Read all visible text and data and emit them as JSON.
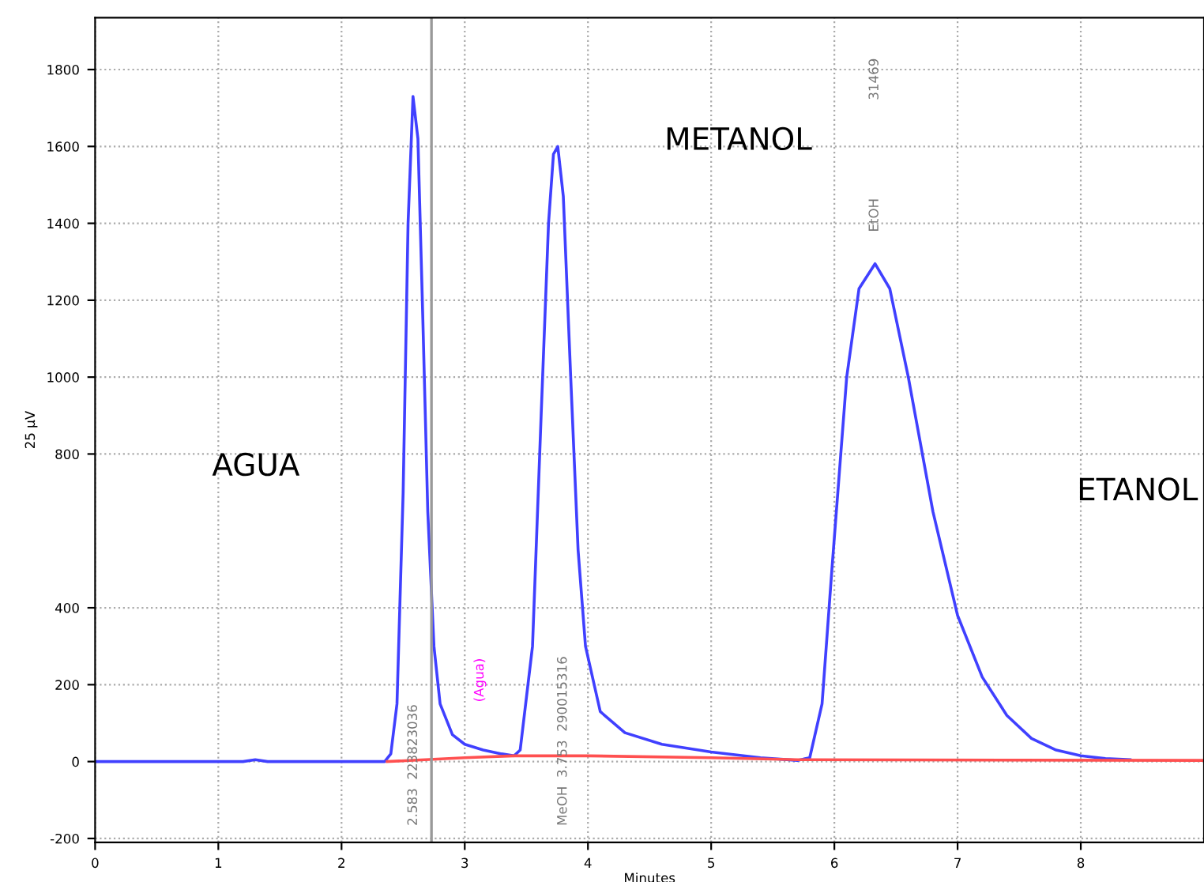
{
  "chart_data": {
    "type": "line",
    "xlabel": "Minutes",
    "ylabel": "25 µV",
    "xlim": [
      0,
      9
    ],
    "ylim": [
      -210,
      1935
    ],
    "xticks": [
      0,
      1,
      2,
      3,
      4,
      5,
      6,
      7,
      8
    ],
    "yticks": [
      -200,
      0,
      200,
      400,
      800,
      1000,
      1200,
      1400,
      1600,
      1800
    ],
    "grid": true,
    "marker": "none",
    "line_style": "solid",
    "series": [
      {
        "color": "#4040ff",
        "x": [
          0,
          1.2,
          1.3,
          1.4,
          2.35,
          2.4,
          2.45,
          2.5,
          2.54,
          2.58,
          2.62,
          2.66,
          2.7,
          2.75,
          2.8,
          2.9,
          3.0,
          3.15,
          3.3,
          3.4,
          3.45,
          3.55,
          3.62,
          3.68,
          3.72,
          3.755,
          3.8,
          3.86,
          3.92,
          3.98,
          4.1,
          4.3,
          4.6,
          5.0,
          5.4,
          5.7,
          5.8,
          5.9,
          5.98,
          6.1,
          6.2,
          6.33,
          6.45,
          6.6,
          6.8,
          7.0,
          7.2,
          7.4,
          7.6,
          7.8,
          8.0,
          8.2,
          8.4
        ],
        "values": [
          0,
          0,
          5,
          0,
          0,
          20,
          150,
          700,
          1400,
          1730,
          1620,
          1150,
          650,
          300,
          150,
          70,
          45,
          30,
          20,
          15,
          30,
          300,
          900,
          1400,
          1580,
          1600,
          1470,
          1000,
          550,
          300,
          130,
          75,
          45,
          25,
          10,
          3,
          10,
          150,
          500,
          1000,
          1230,
          1295,
          1230,
          1000,
          650,
          380,
          220,
          120,
          60,
          30,
          15,
          8,
          5
        ]
      },
      {
        "color": "#ff5050",
        "x": [
          2.37,
          3.0,
          3.4,
          4.0,
          5.0,
          5.7,
          9
        ],
        "values": [
          0,
          10,
          15,
          15,
          10,
          5,
          3
        ]
      }
    ],
    "ref_lines": [
      {
        "axis": "x",
        "value": 2.73,
        "color": "#999999",
        "line_style": "solid"
      }
    ],
    "annotations": [
      "AGUA",
      "METANOL",
      "ETANOL",
      "2.583  223823036",
      "(Agua)",
      "MeOH  3.753  290015316",
      "EtOH",
      "31469"
    ]
  }
}
